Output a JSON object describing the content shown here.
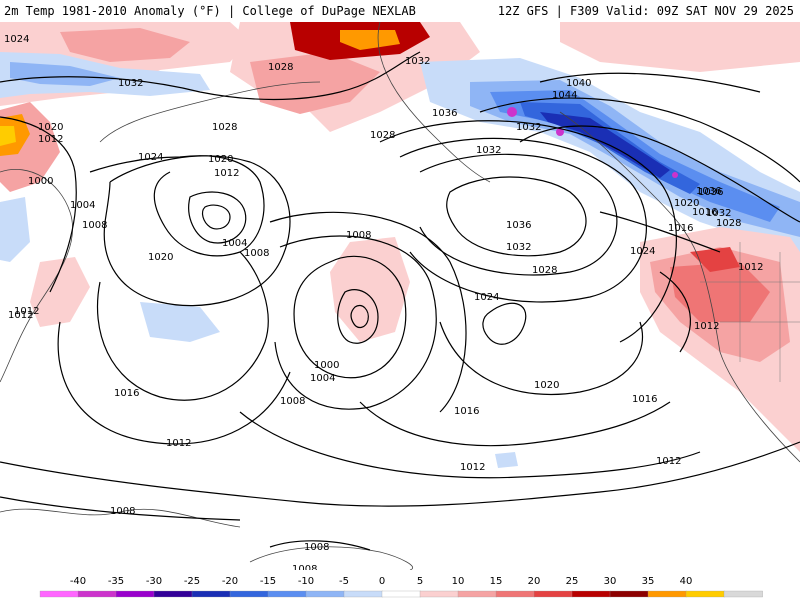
{
  "header": {
    "left": "2m Temp 1981-2010 Anomaly (°F) | College of DuPage NEXLAB",
    "right": "12Z GFS | F309 Valid: 09Z SAT NOV 29 2025"
  },
  "isobar_labels": [
    "1024",
    "1032",
    "1028",
    "1028",
    "1028",
    "1032",
    "1036",
    "1040",
    "1044",
    "1032",
    "1036",
    "1020",
    "1012",
    "1000",
    "1004",
    "1008",
    "1024",
    "1020",
    "1012",
    "1004",
    "1008",
    "1008",
    "1020",
    "1012",
    "1032",
    "1036",
    "1032",
    "1028",
    "1024",
    "1016",
    "1036",
    "1020",
    "1032",
    "1028",
    "1016",
    "1012",
    "1024",
    "1012",
    "1012",
    "1000",
    "1004",
    "1008",
    "1020",
    "1016",
    "1016",
    "1012",
    "1012",
    "1016",
    "1008",
    "1012",
    "1008",
    "1008"
  ],
  "colorbar": {
    "ticks": [
      "-40",
      "-35",
      "-30",
      "-25",
      "-20",
      "-15",
      "-10",
      "-5",
      "0",
      "5",
      "10",
      "15",
      "20",
      "25",
      "30",
      "35",
      "40"
    ],
    "colors": [
      "#ff66ff",
      "#cc33cc",
      "#9900cc",
      "#330099",
      "#1a2fb5",
      "#3366dd",
      "#5b8ef0",
      "#8fb5f5",
      "#c8dcf9",
      "#ffffff",
      "#fbd0d0",
      "#f5a3a3",
      "#ef7575",
      "#e44242",
      "#b80000",
      "#8c0000",
      "#ff9900",
      "#ffcc00",
      "#d9d9d9"
    ]
  }
}
